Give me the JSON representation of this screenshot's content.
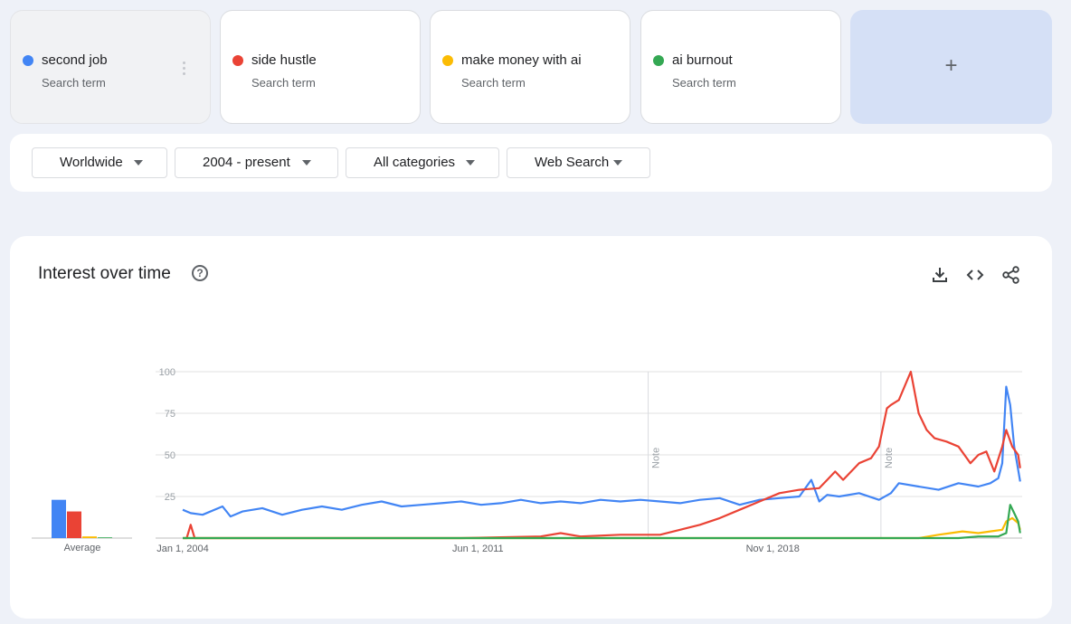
{
  "terms": [
    {
      "name": "second job",
      "subtitle": "Search term",
      "color": "#4285f4"
    },
    {
      "name": "side hustle",
      "subtitle": "Search term",
      "color": "#ea4335"
    },
    {
      "name": "make money with ai",
      "subtitle": "Search term",
      "color": "#fbbc04"
    },
    {
      "name": "ai burnout",
      "subtitle": "Search term",
      "color": "#34a853"
    }
  ],
  "add_term_label": "+",
  "filters": {
    "region": "Worldwide",
    "time": "2004 - present",
    "category": "All categories",
    "search_type": "Web Search"
  },
  "panel": {
    "title": "Interest over time",
    "help_label": "?",
    "icons": [
      "download-icon",
      "embed-code-icon",
      "share-icon"
    ]
  },
  "average_label": "Average",
  "note_label": "Note",
  "chart_data": {
    "type": "line",
    "title": "Interest over time",
    "x_tick_labels": [
      "Jan 1, 2004",
      "Jun 1, 2011",
      "Nov 1, 2018"
    ],
    "x_ticks_years": [
      2004.0,
      2011.42,
      2018.83
    ],
    "x_range": [
      2004.0,
      2025.1
    ],
    "y_tick_labels": [
      "100",
      "75",
      "50",
      "25"
    ],
    "ylim": [
      0,
      100
    ],
    "notes_years": [
      2015.7,
      2021.55
    ],
    "averages": [
      {
        "name": "second job",
        "value": 23
      },
      {
        "name": "side hustle",
        "value": 16
      },
      {
        "name": "make money with ai",
        "value": 1
      },
      {
        "name": "ai burnout",
        "value": 0
      }
    ],
    "series": [
      {
        "name": "second job",
        "color": "#4285f4",
        "x": [
          2004.0,
          2004.2,
          2004.5,
          2005.0,
          2005.2,
          2005.5,
          2006.0,
          2006.5,
          2007.0,
          2007.5,
          2008.0,
          2008.5,
          2009.0,
          2009.5,
          2010.0,
          2010.5,
          2011.0,
          2011.5,
          2012.0,
          2012.5,
          2013.0,
          2013.5,
          2014.0,
          2014.5,
          2015.0,
          2015.5,
          2016.0,
          2016.5,
          2017.0,
          2017.5,
          2018.0,
          2018.5,
          2019.0,
          2019.5,
          2019.8,
          2020.0,
          2020.2,
          2020.5,
          2021.0,
          2021.5,
          2021.8,
          2022.0,
          2022.5,
          2023.0,
          2023.5,
          2024.0,
          2024.3,
          2024.5,
          2024.6,
          2024.7,
          2024.8,
          2024.9,
          2025.05
        ],
        "y": [
          17,
          15,
          14,
          19,
          13,
          16,
          18,
          14,
          17,
          19,
          17,
          20,
          22,
          19,
          20,
          21,
          22,
          20,
          21,
          23,
          21,
          22,
          21,
          23,
          22,
          23,
          22,
          21,
          23,
          24,
          20,
          23,
          24,
          25,
          35,
          22,
          26,
          25,
          27,
          23,
          27,
          33,
          31,
          29,
          33,
          31,
          33,
          36,
          45,
          91,
          80,
          55,
          34
        ]
      },
      {
        "name": "side hustle",
        "color": "#ea4335",
        "x": [
          2004.0,
          2004.1,
          2004.2,
          2004.3,
          2005.0,
          2008.0,
          2011.0,
          2013.0,
          2013.5,
          2014.0,
          2015.0,
          2015.5,
          2016.0,
          2016.5,
          2017.0,
          2017.5,
          2018.0,
          2018.5,
          2019.0,
          2019.5,
          2020.0,
          2020.2,
          2020.4,
          2020.6,
          2021.0,
          2021.3,
          2021.5,
          2021.7,
          2021.8,
          2022.0,
          2022.3,
          2022.5,
          2022.7,
          2022.9,
          2023.2,
          2023.5,
          2023.8,
          2024.0,
          2024.2,
          2024.4,
          2024.6,
          2024.7,
          2024.85,
          2025.0,
          2025.05
        ],
        "y": [
          0,
          0,
          8,
          0,
          0,
          0,
          0,
          1,
          3,
          1,
          2,
          2,
          2,
          5,
          8,
          12,
          17,
          22,
          27,
          29,
          30,
          35,
          40,
          35,
          45,
          48,
          55,
          78,
          80,
          83,
          100,
          75,
          65,
          60,
          58,
          55,
          45,
          50,
          52,
          40,
          55,
          65,
          55,
          50,
          42
        ]
      },
      {
        "name": "make money with ai",
        "color": "#fbbc04",
        "x": [
          2004.0,
          2022.5,
          2023.0,
          2023.3,
          2023.6,
          2024.0,
          2024.3,
          2024.6,
          2024.7,
          2024.85,
          2025.0,
          2025.05
        ],
        "y": [
          0,
          0,
          2,
          3,
          4,
          3,
          4,
          5,
          10,
          12,
          9,
          5
        ]
      },
      {
        "name": "ai burnout",
        "color": "#34a853",
        "x": [
          2004.0,
          2023.5,
          2024.0,
          2024.5,
          2024.6,
          2024.7,
          2024.8,
          2024.9,
          2025.0,
          2025.05
        ],
        "y": [
          0,
          0,
          1,
          1,
          2,
          3,
          20,
          15,
          10,
          3
        ]
      }
    ]
  }
}
